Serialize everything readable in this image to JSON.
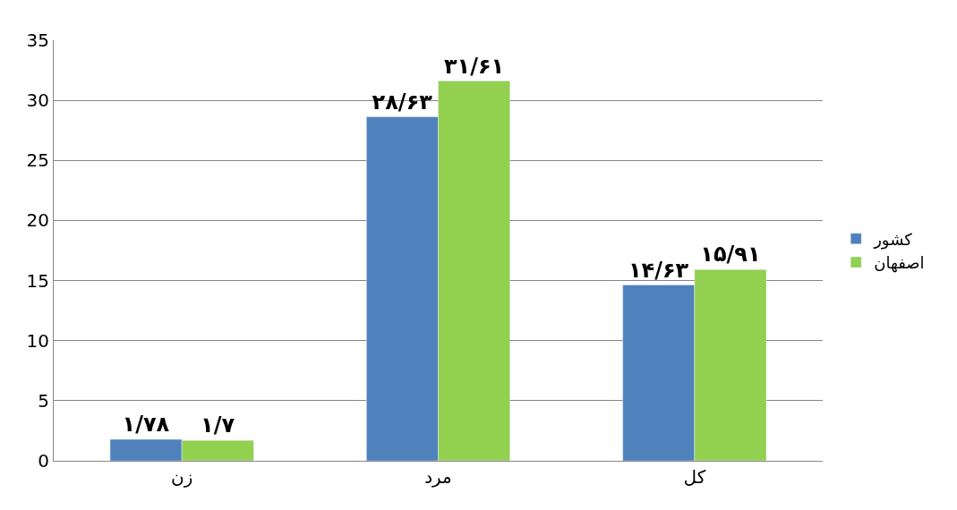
{
  "chart_data": {
    "type": "bar",
    "categories": [
      "زن",
      "مرد",
      "کل"
    ],
    "series": [
      {
        "name": "کشور",
        "color": "#4f81bd",
        "values": [
          1.78,
          28.63,
          14.63
        ],
        "value_labels": [
          "۱/۷۸",
          "۲۸/۶۳",
          "۱۴/۶۳"
        ]
      },
      {
        "name": "اصفهان",
        "color": "#92d050",
        "values": [
          1.7,
          31.61,
          15.91
        ],
        "value_labels": [
          "۱/۷",
          "۳۱/۶۱",
          "۱۵/۹۱"
        ]
      }
    ],
    "ylim": [
      0,
      35
    ],
    "yticks": [
      0,
      5,
      10,
      15,
      20,
      25,
      30,
      35
    ],
    "grid": "y",
    "legend": "right"
  }
}
